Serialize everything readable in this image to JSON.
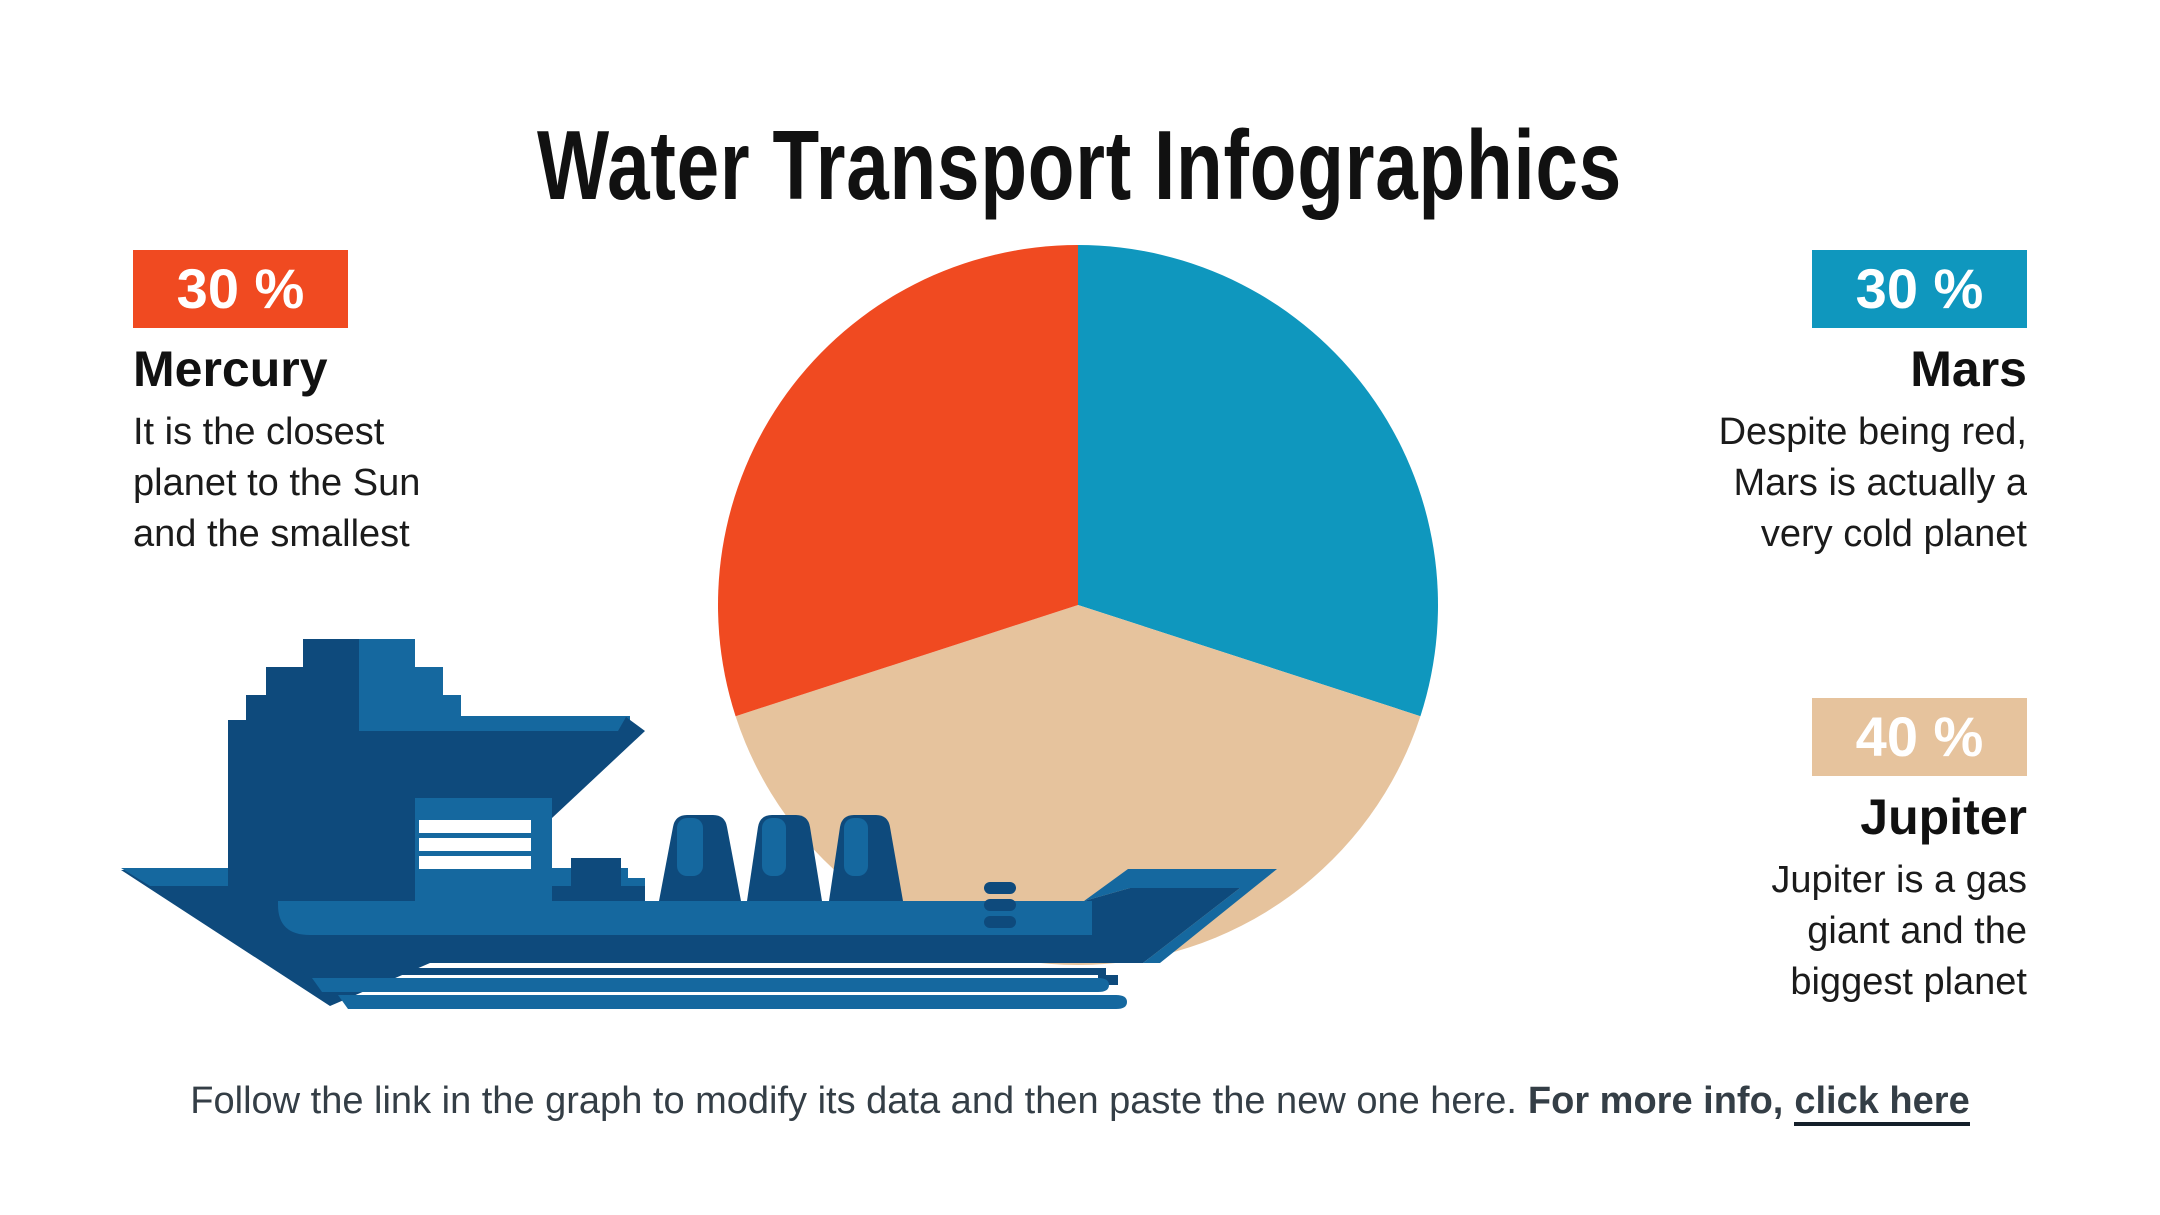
{
  "title": "Water Transport Infographics",
  "colors": {
    "accent_orange": "#F04A21",
    "accent_teal": "#0F97BE",
    "accent_tan": "#E6C39D",
    "ship_dark": "#0E4A7C",
    "ship_mid": "#15689F",
    "heading_text": "#111111",
    "body_text": "#1B1B1B",
    "footer_text": "#343E46"
  },
  "chart_data": {
    "type": "pie",
    "title": "Water Transport Infographics",
    "center": [
      1078,
      605
    ],
    "radius": 360,
    "start": "top",
    "direction": "clockwise",
    "legend_position": "side-callouts",
    "slices": [
      {
        "label": "Mars",
        "value": 30,
        "unit": "%",
        "color": "#0F97BE"
      },
      {
        "label": "Jupiter",
        "value": 40,
        "unit": "%",
        "color": "#E6C39D"
      },
      {
        "label": "Mercury",
        "value": 30,
        "unit": "%",
        "color": "#F04A21"
      }
    ]
  },
  "callouts": {
    "mercury": {
      "badge": "30 %",
      "name": "Mercury",
      "description": "It is the closest\nplanet to the Sun\nand the smallest"
    },
    "mars": {
      "badge": "30 %",
      "name": "Mars",
      "description": "Despite being red,\nMars is actually a\nvery cold planet"
    },
    "jupiter": {
      "badge": "40 %",
      "name": "Jupiter",
      "description": "Jupiter is a gas\ngiant and the\nbiggest planet"
    }
  },
  "footer": {
    "text": "Follow the link in the graph to modify its data and then paste the new one here.",
    "bold_text": "For more info,",
    "link_text": "click here"
  }
}
